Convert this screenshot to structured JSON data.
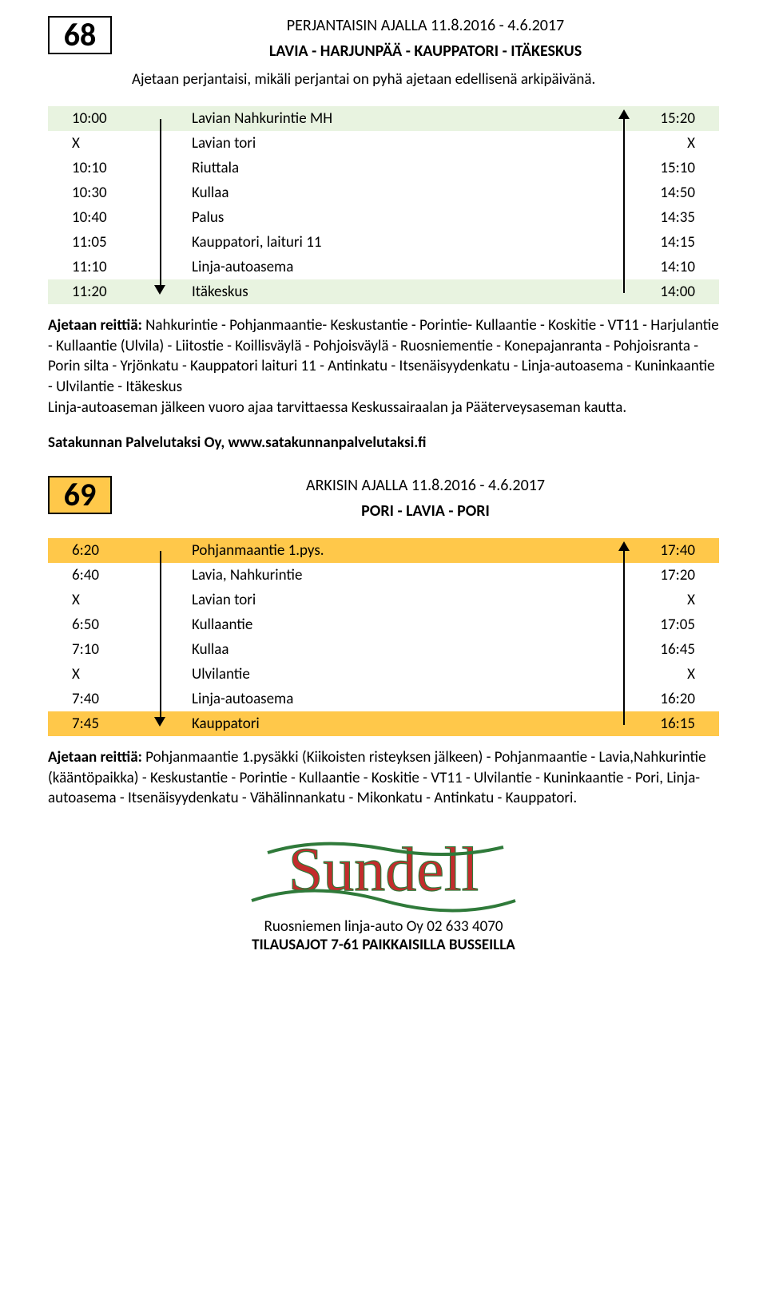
{
  "route68": {
    "badge": "68",
    "period": "PERJANTAISIN AJALLA 11.8.2016 - 4.6.2017",
    "name": "LAVIA - HARJUNPÄÄ - KAUPPATORI - ITÄKESKUS",
    "note": "Ajetaan perjantaisi, mikäli perjantai on pyhä ajetaan edellisenä arkipäivänä.",
    "colors": {
      "highlight": "#e8f3e0"
    },
    "rows": [
      {
        "t1": "10:00",
        "stop": "Lavian Nahkurintie MH",
        "t2": "15:20",
        "hl": true
      },
      {
        "t1": "X",
        "stop": "Lavian tori",
        "t2": "X"
      },
      {
        "t1": "10:10",
        "stop": "Riuttala",
        "t2": "15:10"
      },
      {
        "t1": "10:30",
        "stop": "Kullaa",
        "t2": "14:50"
      },
      {
        "t1": "10:40",
        "stop": "Palus",
        "t2": "14:35"
      },
      {
        "t1": "11:05",
        "stop": "Kauppatori, laituri 11",
        "t2": "14:15"
      },
      {
        "t1": "11:10",
        "stop": "Linja-autoasema",
        "t2": "14:10"
      },
      {
        "t1": "11:20",
        "stop": "Itäkeskus",
        "t2": "14:00",
        "hl": true
      }
    ],
    "desc_lead": "Ajetaan reittiä:",
    "desc": " Nahkurintie - Pohjanmaantie- Keskustantie - Porintie- Kullaantie - Koskitie - VT11 - Harjulantie - Kullaantie (Ulvila) - Liitostie - Koillisväylä - Pohjoisväylä - Ruosniementie - Konepajanranta - Pohjoisranta - Porin silta - Yrjönkatu - Kauppatori laituri 11 - Antinkatu - Itsenäisyydenkatu - Linja-autoasema - Kuninkaantie - Ulvilantie - Itäkeskus",
    "desc2": "Linja-autoaseman jälkeen vuoro ajaa tarvittaessa Keskussairaalan ja Pääterveysaseman kautta.",
    "operator": "Satakunnan Palvelutaksi Oy, www.satakunnanpalvelutaksi.fi"
  },
  "route69": {
    "badge": "69",
    "badge_bg": "#ffc84a",
    "period": "ARKISIN AJALLA 11.8.2016 - 4.6.2017",
    "name": "PORI - LAVIA - PORI",
    "colors": {
      "highlight": "#ffc84a"
    },
    "rows": [
      {
        "t1": "6:20",
        "stop": "Pohjanmaantie 1.pys.",
        "t2": "17:40",
        "hl": true
      },
      {
        "t1": "6:40",
        "stop": "Lavia, Nahkurintie",
        "t2": "17:20"
      },
      {
        "t1": "X",
        "stop": "Lavian tori",
        "t2": "X"
      },
      {
        "t1": "6:50",
        "stop": "Kullaantie",
        "t2": "17:05"
      },
      {
        "t1": "7:10",
        "stop": "Kullaa",
        "t2": "16:45"
      },
      {
        "t1": "X",
        "stop": "Ulvilantie",
        "t2": "X"
      },
      {
        "t1": "7:40",
        "stop": "Linja-autoasema",
        "t2": "16:20"
      },
      {
        "t1": "7:45",
        "stop": "Kauppatori",
        "t2": "16:15",
        "hl": true
      }
    ],
    "desc_lead": "Ajetaan reittiä:",
    "desc": " Pohjanmaantie 1.pysäkki (Kiikoisten risteyksen jälkeen) - Pohjanmaantie - Lavia,Nahkurintie (kääntöpaikka) - Keskustantie - Porintie - Kullaantie - Koskitie - VT11 - Ulvilantie - Kuninkaantie - Pori, Linja-autoasema - Itsenäisyydenkatu - Vähälinnankatu - Mikonkatu - Antinkatu - Kauppatori."
  },
  "footer": {
    "logo_text": "Sundell",
    "line1": "Ruosniemen linja-auto Oy 02 633 4070",
    "line2": "TILAUSAJOT 7-61 PAIKKAISILLA BUSSEILLA"
  }
}
